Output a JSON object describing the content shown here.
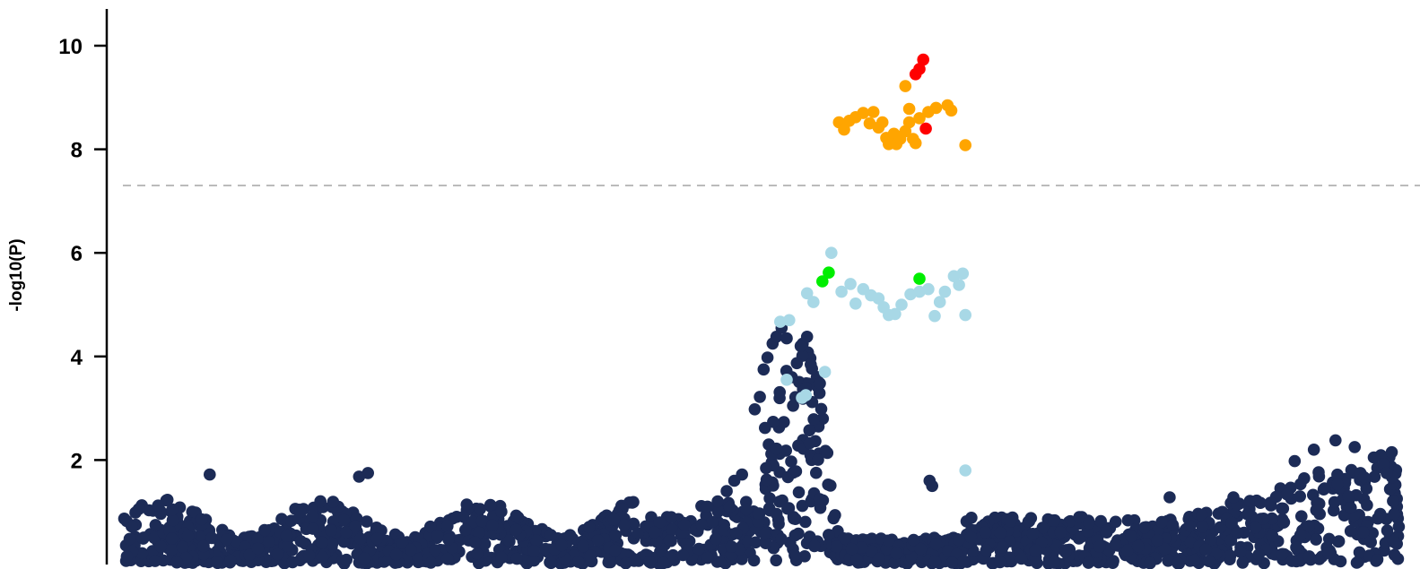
{
  "chart_data": {
    "type": "scatter",
    "title": "",
    "xlabel": "",
    "ylabel": "-log10(P)",
    "ylim": [
      0,
      10.7
    ],
    "yticks": [
      2,
      4,
      6,
      8,
      10
    ],
    "threshold": 7.3,
    "grid": false,
    "legend": "none",
    "colors": {
      "background": "#1c2b56",
      "light_blue": "#a8d8e6",
      "green": "#00ee00",
      "orange": "#ffa500",
      "red": "#ff0000",
      "threshold_line": "#bbbbbb",
      "axis": "#000000"
    },
    "series": [
      {
        "color_key": "light_blue",
        "points": [
          [
            51.5,
            4.67
          ],
          [
            52.2,
            4.7
          ],
          [
            52,
            3.55
          ],
          [
            53.5,
            3.25
          ],
          [
            53.2,
            3.2
          ],
          [
            55,
            3.7
          ],
          [
            53.6,
            5.22
          ],
          [
            54.1,
            5.05
          ],
          [
            55.5,
            6.0
          ],
          [
            56.3,
            5.25
          ],
          [
            57,
            5.4
          ],
          [
            57.4,
            5.02
          ],
          [
            58,
            5.3
          ],
          [
            58.6,
            5.18
          ],
          [
            59.2,
            5.12
          ],
          [
            59.6,
            4.95
          ],
          [
            60,
            4.8
          ],
          [
            60.5,
            4.82
          ],
          [
            61,
            5.0
          ],
          [
            61.7,
            5.2
          ],
          [
            62.4,
            5.25
          ],
          [
            63.1,
            5.3
          ],
          [
            63.6,
            4.78
          ],
          [
            64,
            5.05
          ],
          [
            64.4,
            5.25
          ],
          [
            65.1,
            5.55
          ],
          [
            65.5,
            5.38
          ],
          [
            65.8,
            5.6
          ],
          [
            66,
            4.8
          ],
          [
            66,
            1.8
          ]
        ]
      },
      {
        "color_key": "green",
        "points": [
          [
            54.8,
            5.45
          ],
          [
            55.3,
            5.62
          ],
          [
            62.4,
            5.5
          ]
        ]
      },
      {
        "color_key": "orange",
        "points": [
          [
            56.1,
            8.52
          ],
          [
            56.5,
            8.38
          ],
          [
            56.9,
            8.55
          ],
          [
            57.4,
            8.62
          ],
          [
            58,
            8.7
          ],
          [
            58.5,
            8.5
          ],
          [
            58.8,
            8.72
          ],
          [
            59.2,
            8.42
          ],
          [
            59.5,
            8.52
          ],
          [
            59.8,
            8.22
          ],
          [
            60,
            8.1
          ],
          [
            60.4,
            8.3
          ],
          [
            60.6,
            8.1
          ],
          [
            60.9,
            8.2
          ],
          [
            61.3,
            8.35
          ],
          [
            61.6,
            8.52
          ],
          [
            61.9,
            8.2
          ],
          [
            62.1,
            8.12
          ],
          [
            61.3,
            9.22
          ],
          [
            61.6,
            8.78
          ],
          [
            62.4,
            8.6
          ],
          [
            63.1,
            8.72
          ],
          [
            63.7,
            8.8
          ],
          [
            64.6,
            8.85
          ],
          [
            64.9,
            8.75
          ],
          [
            66,
            8.08
          ]
        ]
      },
      {
        "color_key": "red",
        "points": [
          [
            62.4,
            9.55
          ],
          [
            62.7,
            9.73
          ],
          [
            62.1,
            9.45
          ],
          [
            62.9,
            8.4
          ]
        ]
      }
    ]
  }
}
